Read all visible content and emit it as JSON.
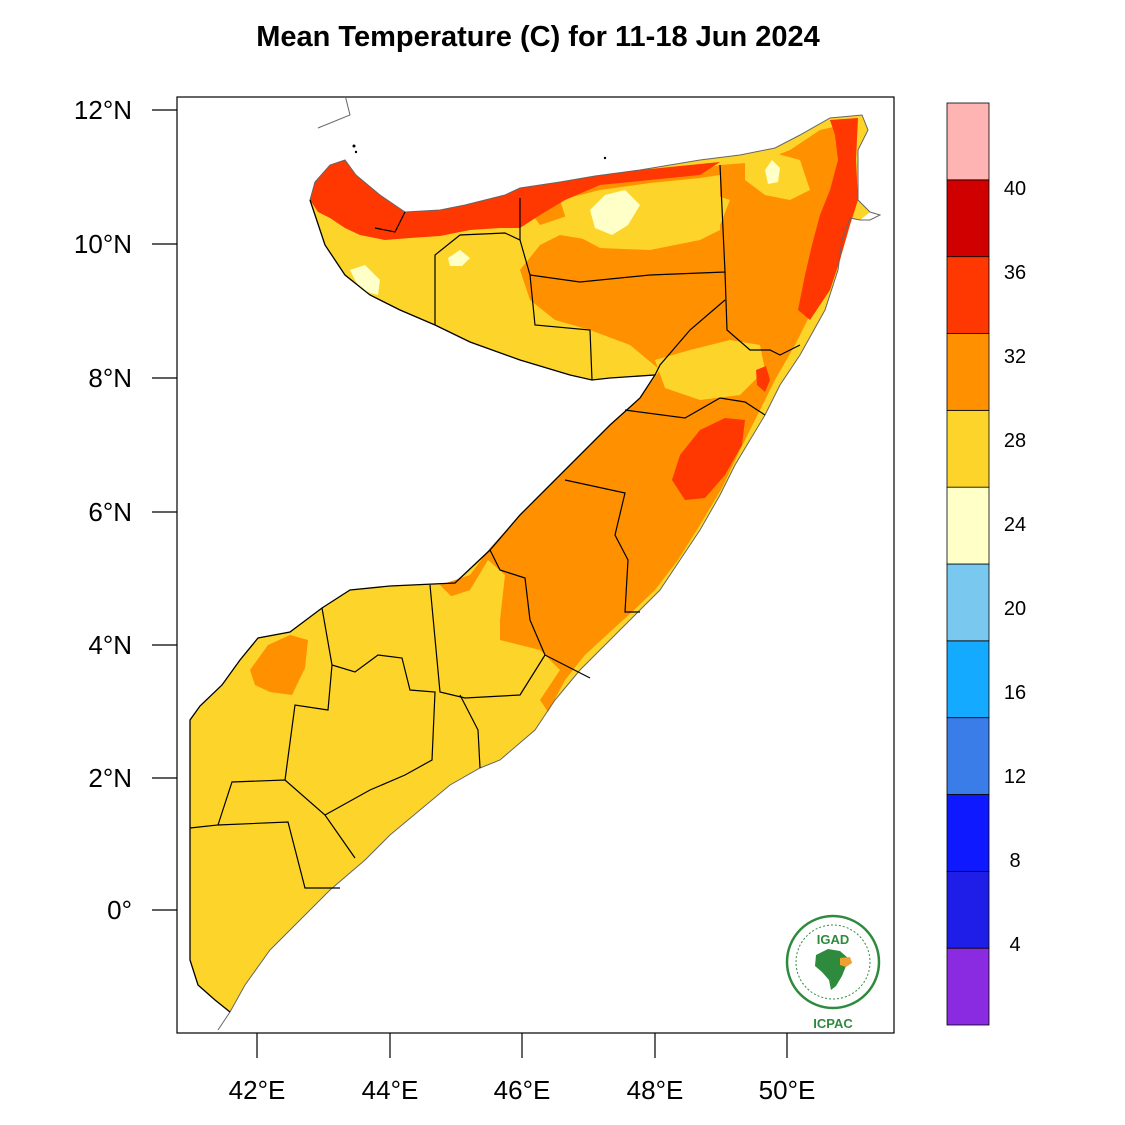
{
  "title": "Mean Temperature (C) for 11-18 Jun 2024",
  "axes": {
    "lat_ticks": [
      {
        "label": "12°N"
      },
      {
        "label": "10°N"
      },
      {
        "label": "8°N"
      },
      {
        "label": "6°N"
      },
      {
        "label": "4°N"
      },
      {
        "label": "2°N"
      },
      {
        "label": "0°"
      }
    ],
    "lon_ticks": [
      {
        "label": "42°E"
      },
      {
        "label": "44°E"
      },
      {
        "label": "46°E"
      },
      {
        "label": "48°E"
      },
      {
        "label": "50°E"
      }
    ]
  },
  "colorbar": {
    "bins": [
      {
        "color": "#8a2be2"
      },
      {
        "color": "#1e1ee8"
      },
      {
        "color": "#0f19ff"
      },
      {
        "color": "#3a7de8"
      },
      {
        "color": "#14aaff"
      },
      {
        "color": "#78c8f0"
      },
      {
        "color": "#ffffc8"
      },
      {
        "color": "#fdd52a"
      },
      {
        "color": "#ff9100"
      },
      {
        "color": "#ff3700"
      },
      {
        "color": "#d00000"
      },
      {
        "color": "#ffb4b4"
      }
    ],
    "labels": [
      "4",
      "8",
      "12",
      "16",
      "20",
      "24",
      "28",
      "32",
      "36",
      "40"
    ]
  },
  "logo": {
    "top_text": "IGAD",
    "bottom_text": "ICPAC"
  },
  "colors": {
    "cool": "#ffffc8",
    "warm": "#fdd52a",
    "hot": "#ff9100",
    "very_hot": "#ff3700",
    "logo_green": "#2e8b3d"
  }
}
